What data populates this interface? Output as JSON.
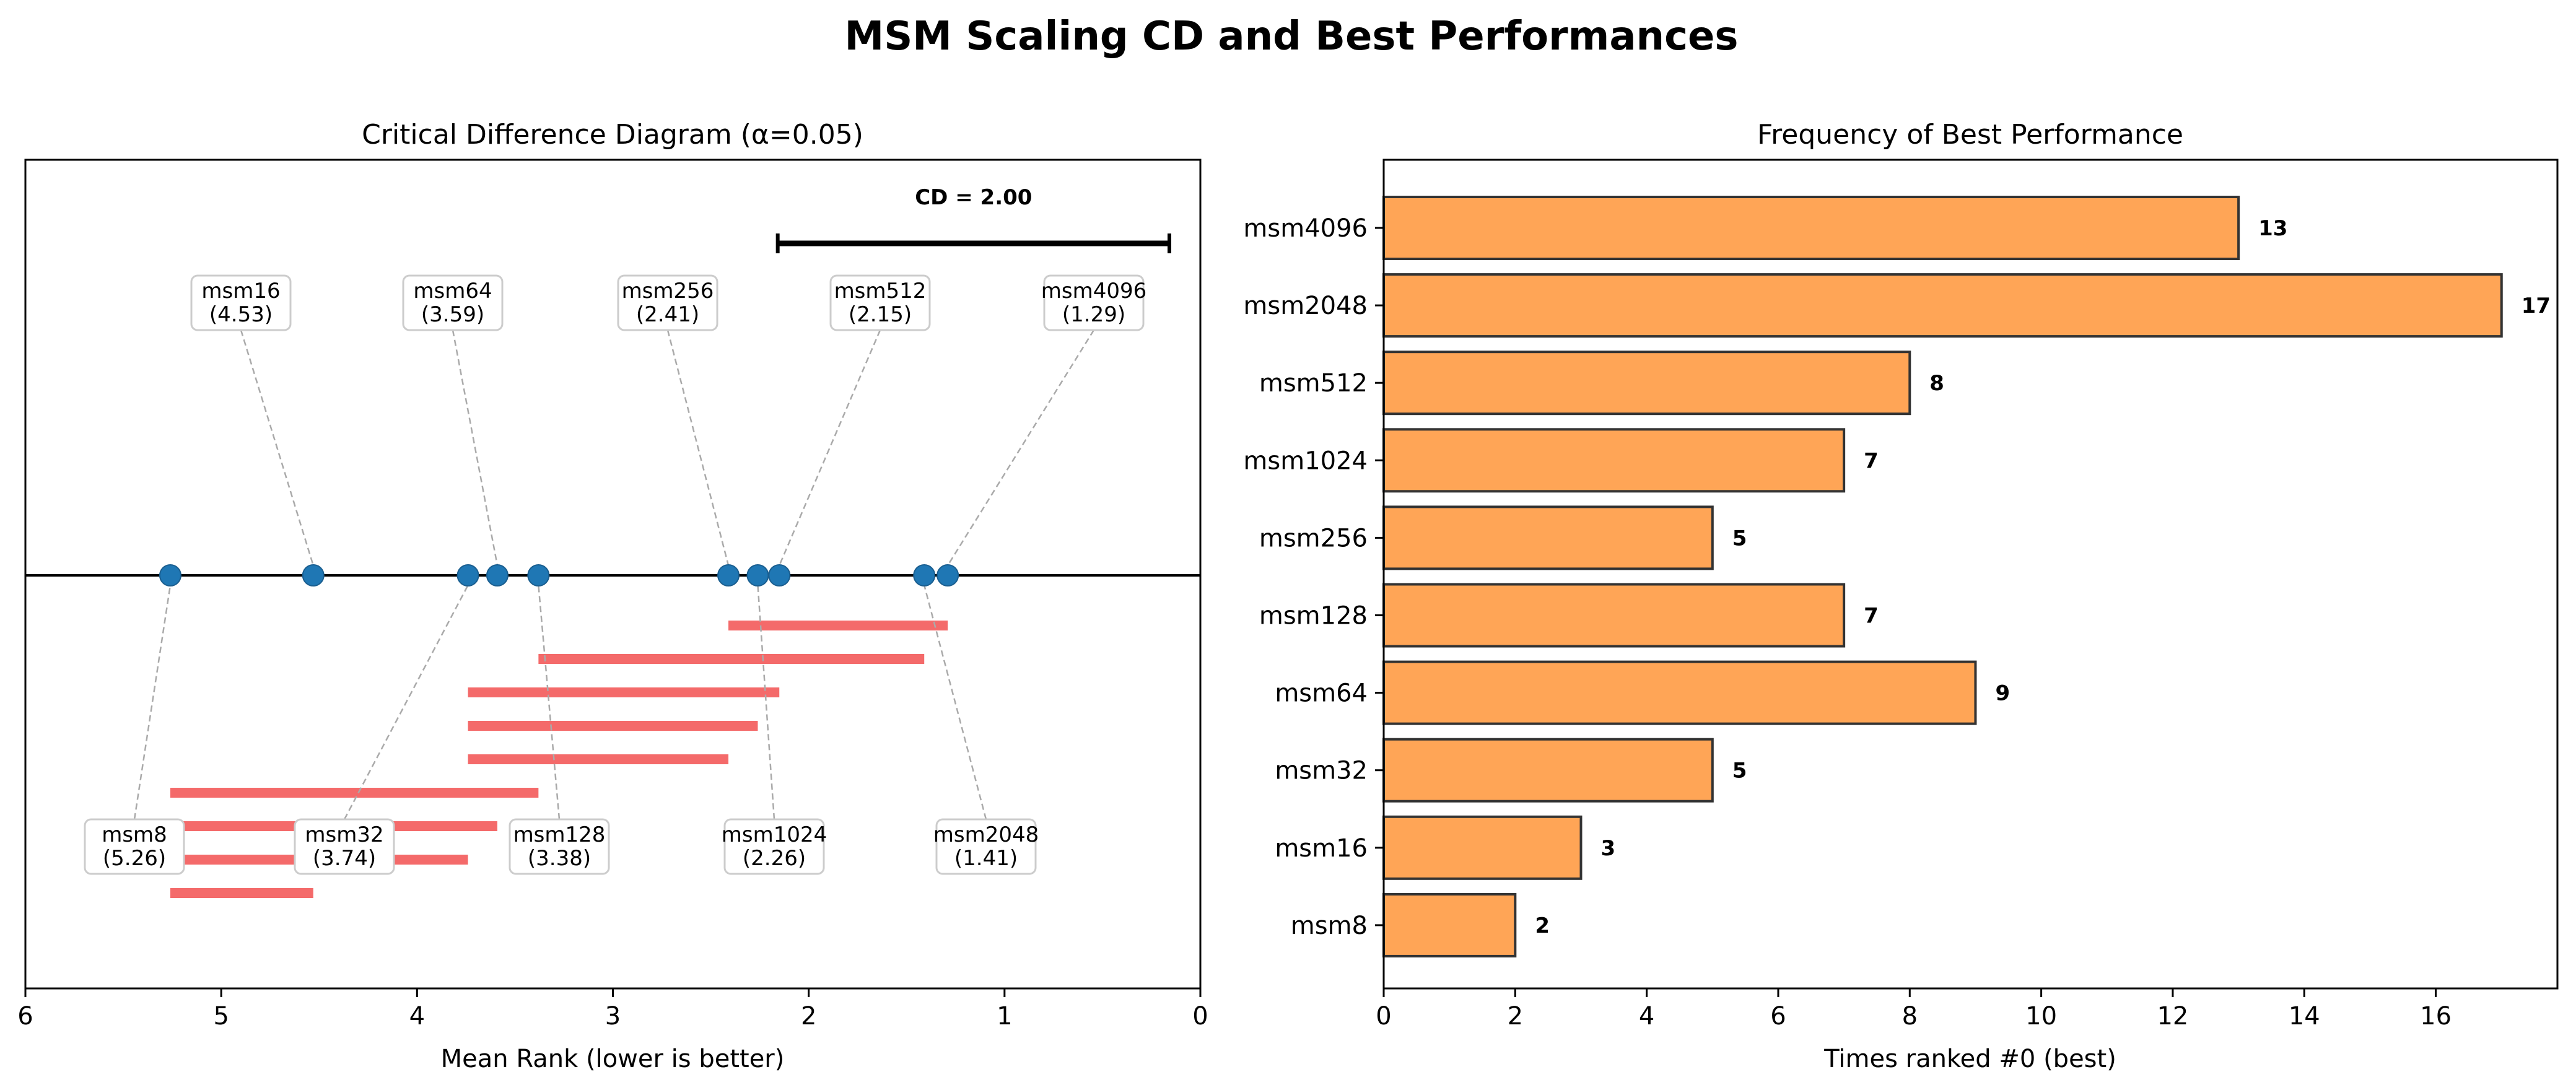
{
  "suptitle": "MSM Scaling CD and Best Performances",
  "chart_data": [
    {
      "type": "scatter",
      "subtype": "critical-difference-diagram",
      "title": "Critical Difference Diagram (α=0.05)",
      "xlabel": "Mean Rank (lower is better)",
      "xlim": [
        6,
        0
      ],
      "xticks": [
        "6",
        "5",
        "4",
        "3",
        "2",
        "1",
        "0"
      ],
      "cd_label": "CD = 2.00",
      "cd_value": 2.0,
      "marker_color": "#1f77b4",
      "clique_color": "#f46a6a",
      "methods": [
        {
          "name": "msm8",
          "rank": 5.26,
          "rank_text": "(5.26)",
          "side": "bottom"
        },
        {
          "name": "msm16",
          "rank": 4.53,
          "rank_text": "(4.53)",
          "side": "top"
        },
        {
          "name": "msm32",
          "rank": 3.74,
          "rank_text": "(3.74)",
          "side": "bottom"
        },
        {
          "name": "msm64",
          "rank": 3.59,
          "rank_text": "(3.59)",
          "side": "top"
        },
        {
          "name": "msm128",
          "rank": 3.38,
          "rank_text": "(3.38)",
          "side": "bottom"
        },
        {
          "name": "msm256",
          "rank": 2.41,
          "rank_text": "(2.41)",
          "side": "top"
        },
        {
          "name": "msm1024",
          "rank": 2.26,
          "rank_text": "(2.26)",
          "side": "bottom"
        },
        {
          "name": "msm512",
          "rank": 2.15,
          "rank_text": "(2.15)",
          "side": "top"
        },
        {
          "name": "msm2048",
          "rank": 1.41,
          "rank_text": "(1.41)",
          "side": "bottom"
        },
        {
          "name": "msm4096",
          "rank": 1.29,
          "rank_text": "(1.29)",
          "side": "top"
        }
      ],
      "cliques": [
        [
          2.41,
          1.29
        ],
        [
          3.38,
          1.41
        ],
        [
          3.74,
          2.15
        ],
        [
          3.74,
          2.26
        ],
        [
          3.74,
          2.41
        ],
        [
          5.26,
          3.38
        ],
        [
          5.26,
          3.59
        ],
        [
          5.26,
          3.74
        ],
        [
          5.26,
          4.53
        ]
      ]
    },
    {
      "type": "bar",
      "orientation": "horizontal",
      "title": "Frequency of Best Performance",
      "xlabel": "Times ranked #0 (best)",
      "xlim": [
        0,
        17.85
      ],
      "xticks": [
        0,
        2,
        4,
        6,
        8,
        10,
        12,
        14,
        16
      ],
      "bar_color": "#ffa556",
      "edge_color": "#333333",
      "categories": [
        "msm4096",
        "msm2048",
        "msm512",
        "msm1024",
        "msm256",
        "msm128",
        "msm64",
        "msm32",
        "msm16",
        "msm8"
      ],
      "values": [
        13,
        17,
        8,
        7,
        5,
        7,
        9,
        5,
        3,
        2
      ]
    }
  ]
}
